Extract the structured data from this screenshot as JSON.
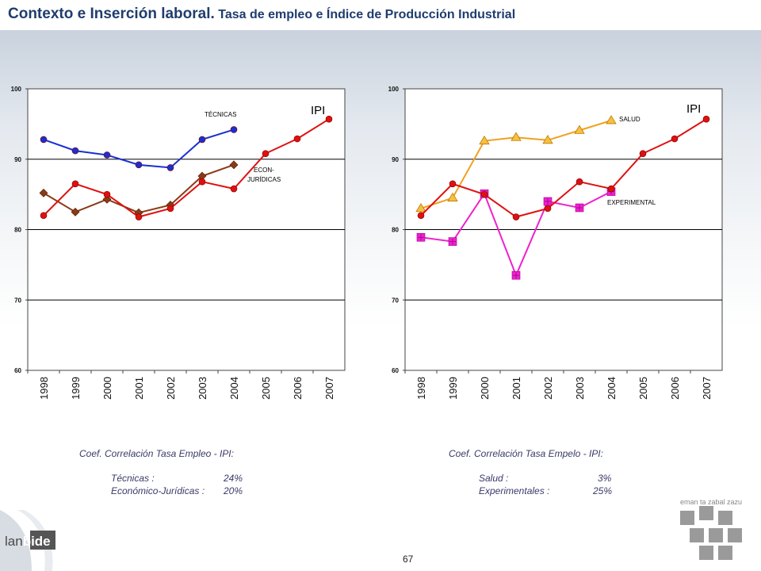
{
  "title": {
    "main": "Contexto e Inserción laboral.",
    "sub": "Tasa de empleo e Índice de Producción Industrial"
  },
  "chart_data": [
    {
      "type": "line",
      "categories": [
        "1998",
        "1999",
        "2000",
        "2001",
        "2002",
        "2003",
        "2004",
        "2005",
        "2006",
        "2007"
      ],
      "ylim": [
        60,
        100
      ],
      "yticks": [
        60,
        70,
        80,
        90,
        100
      ],
      "grid": true,
      "series": [
        {
          "name": "TÉCNICAS",
          "color": "#1b2fd1",
          "marker": "circle",
          "values": [
            92.8,
            91.2,
            90.6,
            89.2,
            88.8,
            92.8,
            94.2,
            null,
            null,
            null
          ]
        },
        {
          "name": "ECON-JURÍDICAS",
          "color": "#8b3a16",
          "marker": "diamond",
          "values": [
            85.2,
            82.5,
            84.3,
            82.4,
            83.5,
            87.6,
            89.2,
            null,
            null,
            null
          ]
        },
        {
          "name": "IPI",
          "color": "#e01010",
          "marker": "circle",
          "values": [
            82.0,
            86.5,
            85.0,
            81.8,
            83.0,
            86.8,
            85.8,
            90.8,
            92.9,
            95.7
          ]
        }
      ],
      "labels": {
        "ipi": "IPI",
        "tecnicas": "TÉCNICAS",
        "econ_1": "ECON-",
        "econ_2": "JURÍDICAS"
      }
    },
    {
      "type": "line",
      "categories": [
        "1998",
        "1999",
        "2000",
        "2001",
        "2002",
        "2003",
        "2004",
        "2005",
        "2006",
        "2007"
      ],
      "ylim": [
        60,
        100
      ],
      "yticks": [
        60,
        70,
        80,
        90,
        100
      ],
      "grid": true,
      "series": [
        {
          "name": "SALUD",
          "color": "#f0a020",
          "marker": "triangle",
          "values": [
            83.0,
            84.5,
            92.6,
            93.1,
            92.7,
            94.1,
            95.5,
            null,
            null,
            null
          ]
        },
        {
          "name": "EXPERIMENTAL",
          "color": "#ee22cc",
          "marker": "square",
          "values": [
            78.9,
            78.3,
            85.1,
            73.5,
            84.0,
            83.1,
            85.4,
            null,
            null,
            null
          ]
        },
        {
          "name": "IPI",
          "color": "#e01010",
          "marker": "circle",
          "values": [
            82.0,
            86.5,
            85.0,
            81.8,
            83.0,
            86.8,
            85.8,
            90.8,
            92.9,
            95.7
          ]
        }
      ],
      "labels": {
        "ipi": "IPI",
        "salud": "SALUD",
        "experimental": "EXPERIMENTAL"
      }
    }
  ],
  "coef_left": {
    "title": "Coef. Correlación  Tasa Empleo - IPI:",
    "rows": [
      {
        "label": "Técnicas :",
        "value": "24%"
      },
      {
        "label": "Económico-Jurídicas :",
        "value": "20%"
      }
    ]
  },
  "coef_right": {
    "title": "Coef. Correlación  Tasa Empelo - IPI:",
    "rows": [
      {
        "label": "Salud :",
        "value": "3%"
      },
      {
        "label": "Experimentales :",
        "value": "25%"
      }
    ]
  },
  "page_number": "67",
  "logo_left": {
    "part1": "lan",
    "part2": "bide"
  },
  "logo_right": {
    "text": "eman ta zabal zazu"
  }
}
